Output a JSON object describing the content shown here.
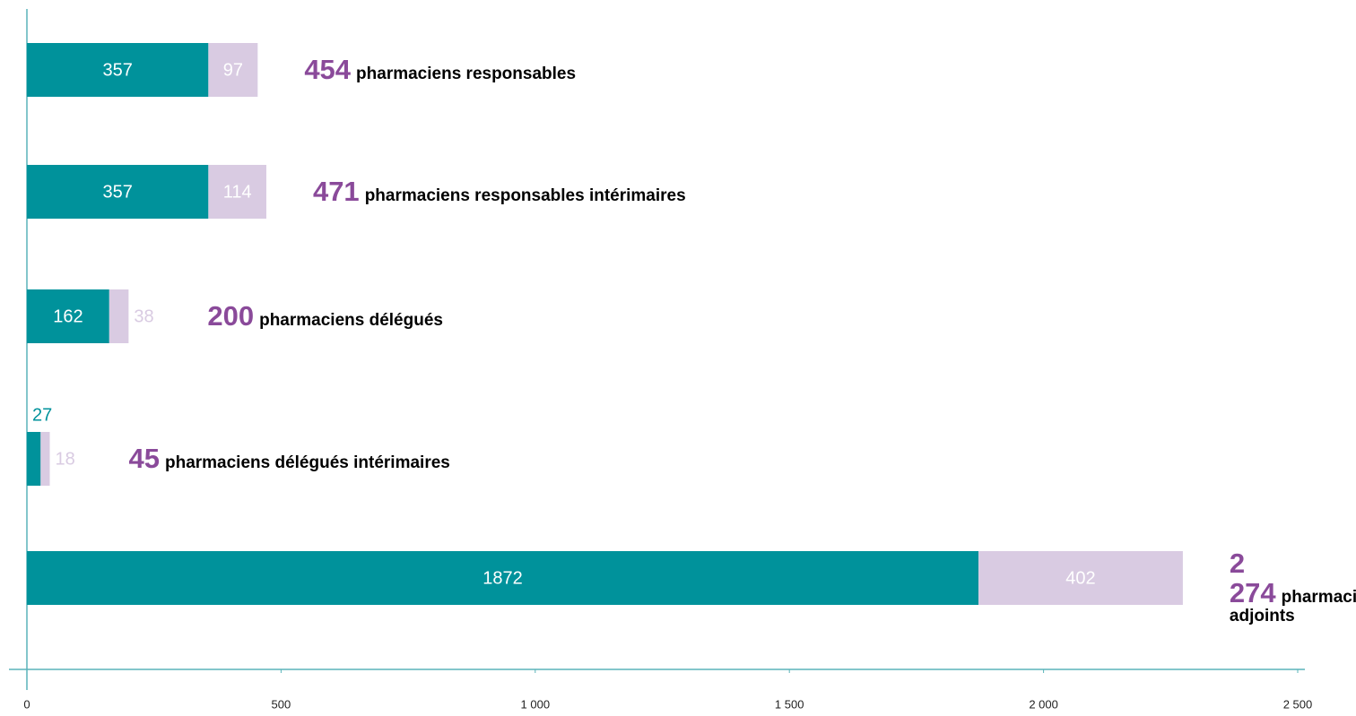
{
  "chart_data": {
    "type": "stacked-barh",
    "categories": [
      "pharmaciens responsables",
      "pharmaciens responsables intérimaires",
      "pharmaciens délégués",
      "pharmaciens délégués intérimaires",
      "pharmaciens adjoints"
    ],
    "series": [
      {
        "color": "#00929b",
        "values": [
          357,
          357,
          162,
          27,
          1872
        ]
      },
      {
        "color": "#d9cbe2",
        "values": [
          97,
          114,
          38,
          18,
          402
        ]
      }
    ],
    "totals": {
      "values": [
        454,
        471,
        200,
        45,
        2274
      ],
      "value_labels": [
        "454",
        "471",
        "200",
        "45",
        "2 274"
      ]
    },
    "xlim": [
      0,
      2500
    ],
    "xticks": [
      0,
      500,
      {
        "value": 1000,
        "label": "1 000"
      },
      {
        "value": 1500,
        "label": "1 500"
      },
      {
        "value": 2000,
        "label": "2 000"
      },
      {
        "value": 2500,
        "label": "2 500"
      }
    ],
    "axis_color": "#5ab4ba"
  }
}
